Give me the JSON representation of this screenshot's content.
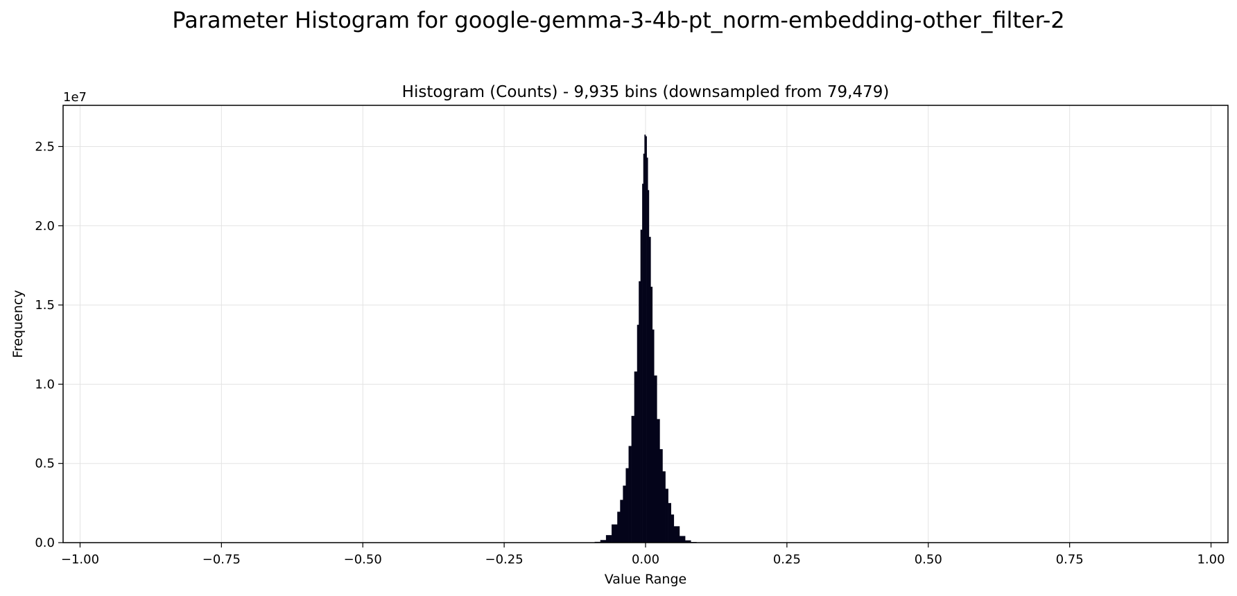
{
  "figure": {
    "suptitle": "Parameter Histogram for google-gemma-3-4b-pt_norm-embedding-other_filter-2"
  },
  "chart_data": {
    "type": "bar",
    "title": "Histogram (Counts) - 9,935 bins (downsampled from 79,479)",
    "xlabel": "Value Range",
    "ylabel": "Frequency",
    "y_scale_label": "1e7",
    "xlim": [
      -1.03,
      1.03
    ],
    "ylim": [
      0,
      27600000
    ],
    "x_ticks": [
      -1.0,
      -0.75,
      -0.5,
      -0.25,
      0.0,
      0.25,
      0.5,
      0.75,
      1.0
    ],
    "x_tick_labels": [
      "−1.00",
      "−0.75",
      "−0.50",
      "−0.25",
      "0.00",
      "0.25",
      "0.50",
      "0.75",
      "1.00"
    ],
    "y_ticks": [
      0,
      5000000,
      10000000,
      15000000,
      20000000,
      25000000
    ],
    "y_tick_labels": [
      "0.0",
      "0.5",
      "1.0",
      "1.5",
      "2.0",
      "2.5"
    ],
    "grid": true,
    "bar_color": "#04041a",
    "distribution": {
      "shape": "sharply peaked, roughly symmetric around 0",
      "peak_x": 0.0,
      "peak_count": 26200000,
      "approx_support": [
        -0.1,
        0.1
      ]
    },
    "series": [
      {
        "x": [
          -0.1,
          -0.09,
          -0.08,
          -0.07,
          -0.06,
          -0.05,
          -0.045,
          -0.04,
          -0.035,
          -0.03,
          -0.025,
          -0.02,
          -0.015,
          -0.012,
          -0.009,
          -0.006,
          -0.004,
          -0.002,
          0.0,
          0.002,
          0.004,
          0.006,
          0.009,
          0.012,
          0.015,
          0.02,
          0.025,
          0.03,
          0.035,
          0.04,
          0.045,
          0.05,
          0.06,
          0.07,
          0.08,
          0.09,
          0.1
        ],
        "values": [
          0,
          20000,
          80000,
          250000,
          700000,
          1600000,
          2300000,
          3100000,
          4100000,
          5300000,
          6900000,
          9100000,
          12500000,
          15000000,
          18000000,
          21500000,
          23800000,
          25300000,
          26200000,
          25100000,
          23500000,
          21000000,
          17600000,
          14700000,
          12200000,
          8900000,
          6700000,
          5100000,
          3900000,
          2900000,
          2100000,
          1450000,
          620000,
          220000,
          70000,
          15000,
          0
        ]
      }
    ]
  }
}
